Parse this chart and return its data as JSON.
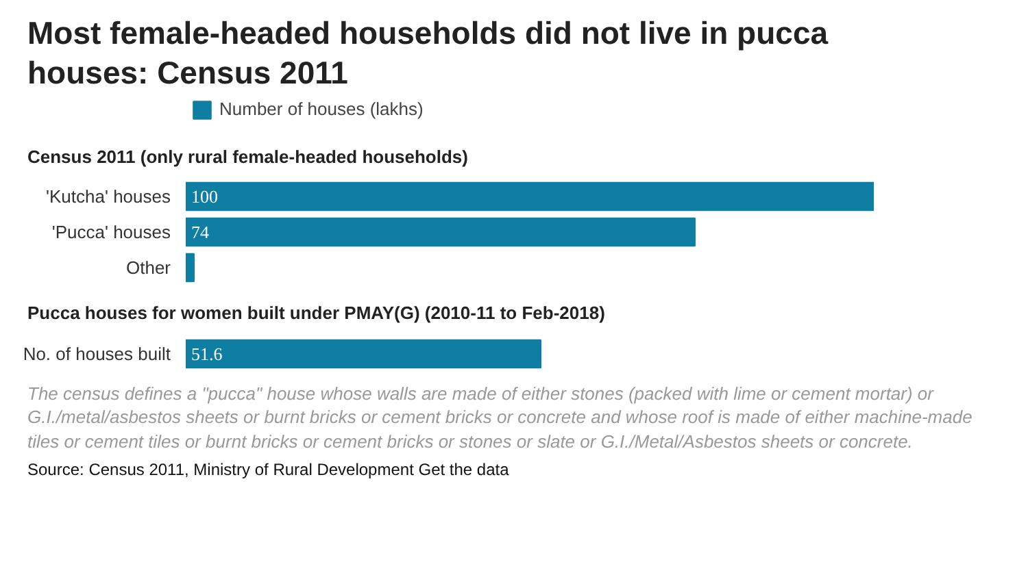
{
  "chart_data": [
    {
      "type": "bar",
      "orientation": "horizontal",
      "title": "Most female-headed households did not live in pucca houses: Census 2011",
      "subtitle": "Census 2011 (only rural female-headed households)",
      "legend": "top left",
      "categories": [
        "'Kutcha' houses",
        "'Pucca' houses",
        "Other"
      ],
      "series": [
        {
          "name": "Number of houses (lakhs)",
          "color": "#0f7ea3",
          "values": [
            100,
            74,
            1.2
          ],
          "value_labels": [
            "100",
            "74",
            null
          ]
        }
      ]
    },
    {
      "type": "bar",
      "orientation": "horizontal",
      "subtitle": "Pucca houses for women built under PMAY(G) (2010-11 to Feb-2018)",
      "categories": [
        "No. of houses built"
      ],
      "series": [
        {
          "color": "#0f7ea3",
          "values": [
            51.6
          ],
          "value_labels": [
            "51.6"
          ]
        }
      ],
      "annotations": [
        "The census defines a \"pucca\" house whose walls are made of either stones (packed with lime or cement mortar) or G.I./metal/asbestos sheets or burnt bricks or cement bricks or concrete and whose roof is made of either machine-made tiles or cement tiles or burnt bricks or cement bricks or stones or slate or G.I./Metal/Asbestos sheets or concrete.",
        "Source: Census 2011, Ministry of Rural Development Get the data"
      ]
    }
  ]
}
